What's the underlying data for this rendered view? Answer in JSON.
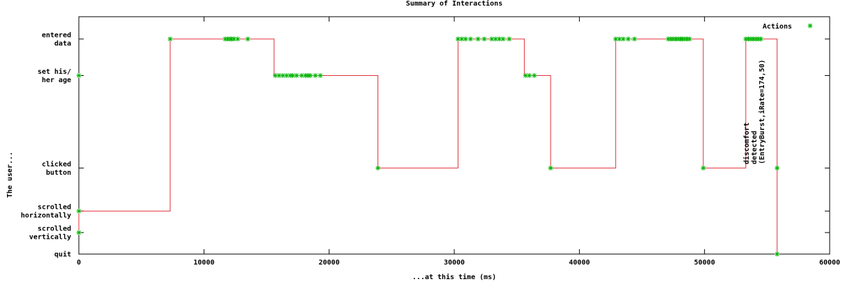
{
  "chart_data": {
    "type": "line",
    "title": "Summary of Interactions",
    "xlabel": "...at this time (ms)",
    "ylabel": "The user...",
    "xlim": [
      0,
      60000
    ],
    "x_ticks": [
      0,
      10000,
      20000,
      30000,
      40000,
      50000,
      60000
    ],
    "x_tick_labels": [
      "0",
      "10000",
      "20000",
      "30000",
      "40000",
      "50000",
      "60000"
    ],
    "y_categories": [
      {
        "key": "quit",
        "level": 0,
        "lines": [
          "quit"
        ]
      },
      {
        "key": "scrolled_vertically",
        "level": 1,
        "lines": [
          "scrolled",
          "vertically"
        ]
      },
      {
        "key": "scrolled_horizontally",
        "level": 2,
        "lines": [
          "scrolled",
          "horizontally"
        ]
      },
      {
        "key": "clicked_button",
        "level": 4,
        "lines": [
          "clicked",
          "button"
        ]
      },
      {
        "key": "set_age",
        "level": 8.3,
        "lines": [
          "set his/",
          "her age"
        ]
      },
      {
        "key": "entered_data",
        "level": 10,
        "lines": [
          "entered",
          "data"
        ]
      }
    ],
    "ylim": [
      0,
      10
    ],
    "legend": {
      "label": "Actions",
      "position": "top-right"
    },
    "annotation": {
      "lines": [
        "discomfort",
        "detected",
        "(EntryBurst,iRate=174,50)"
      ],
      "x": 55200
    },
    "colors": {
      "line": "#e0303a",
      "points": "#00b400"
    },
    "step_path": [
      [
        0,
        1
      ],
      [
        0,
        2
      ],
      [
        7300,
        2
      ],
      [
        7300,
        10
      ],
      [
        15600,
        10
      ],
      [
        15600,
        8.3
      ],
      [
        23900,
        8.3
      ],
      [
        23900,
        4
      ],
      [
        30300,
        4
      ],
      [
        30300,
        10
      ],
      [
        35600,
        10
      ],
      [
        35600,
        8.3
      ],
      [
        37700,
        8.3
      ],
      [
        37700,
        4
      ],
      [
        42900,
        4
      ],
      [
        42900,
        10
      ],
      [
        49900,
        10
      ],
      [
        49900,
        4
      ],
      [
        53300,
        4
      ],
      [
        53300,
        10
      ],
      [
        55800,
        10
      ],
      [
        55800,
        0
      ]
    ],
    "points": [
      [
        0,
        8.3
      ],
      [
        0,
        2
      ],
      [
        0,
        1
      ],
      [
        7300,
        10
      ],
      [
        11700,
        10
      ],
      [
        11900,
        10
      ],
      [
        12100,
        10
      ],
      [
        12200,
        10
      ],
      [
        12400,
        10
      ],
      [
        12700,
        10
      ],
      [
        13500,
        10
      ],
      [
        15700,
        8.3
      ],
      [
        16000,
        8.3
      ],
      [
        16300,
        8.3
      ],
      [
        16600,
        8.3
      ],
      [
        16900,
        8.3
      ],
      [
        17100,
        8.3
      ],
      [
        17400,
        8.3
      ],
      [
        17800,
        8.3
      ],
      [
        18100,
        8.3
      ],
      [
        18300,
        8.3
      ],
      [
        18500,
        8.3
      ],
      [
        18900,
        8.3
      ],
      [
        19300,
        8.3
      ],
      [
        23900,
        4
      ],
      [
        30300,
        10
      ],
      [
        30600,
        10
      ],
      [
        30900,
        10
      ],
      [
        31300,
        10
      ],
      [
        31900,
        10
      ],
      [
        32400,
        10
      ],
      [
        33000,
        10
      ],
      [
        33300,
        10
      ],
      [
        33600,
        10
      ],
      [
        33900,
        10
      ],
      [
        34400,
        10
      ],
      [
        35700,
        8.3
      ],
      [
        36000,
        8.3
      ],
      [
        36400,
        8.3
      ],
      [
        37700,
        4
      ],
      [
        42900,
        10
      ],
      [
        43200,
        10
      ],
      [
        43500,
        10
      ],
      [
        43900,
        10
      ],
      [
        44400,
        10
      ],
      [
        47100,
        10
      ],
      [
        47300,
        10
      ],
      [
        47500,
        10
      ],
      [
        47700,
        10
      ],
      [
        47900,
        10
      ],
      [
        48100,
        10
      ],
      [
        48200,
        10
      ],
      [
        48400,
        10
      ],
      [
        48600,
        10
      ],
      [
        48800,
        10
      ],
      [
        49900,
        4
      ],
      [
        53300,
        10
      ],
      [
        53500,
        10
      ],
      [
        53700,
        10
      ],
      [
        53900,
        10
      ],
      [
        54100,
        10
      ],
      [
        54300,
        10
      ],
      [
        54500,
        10
      ],
      [
        55800,
        4
      ],
      [
        55800,
        0
      ]
    ]
  }
}
